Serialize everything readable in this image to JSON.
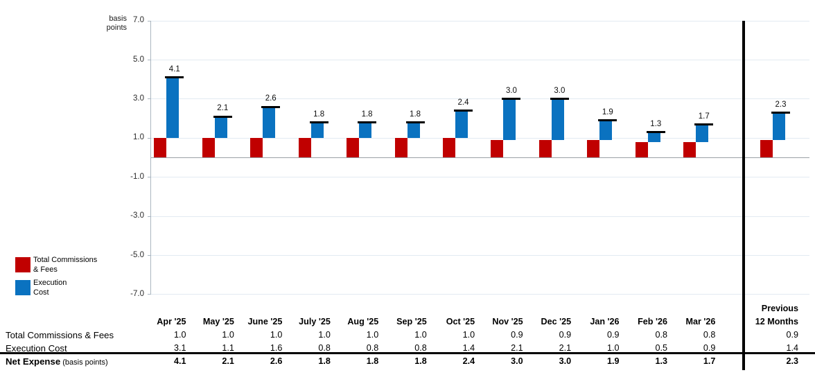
{
  "axis_title": {
    "line1": "basis",
    "line2": "points"
  },
  "legend": {
    "items": [
      {
        "name": "total-commissions-fees",
        "line1": "Total Commissions",
        "line2": "& Fees",
        "color": "#c00000"
      },
      {
        "name": "execution-cost",
        "line1": "Execution",
        "line2": "Cost",
        "color": "#0a72c0"
      }
    ]
  },
  "colors": {
    "commissions_bar": "#c00000",
    "execution_bar": "#0a72c0",
    "total_cap": "#000000",
    "gridline": "#e2eaf2",
    "zero_line": "#9aa0a6",
    "separator": "#000000"
  },
  "chart_data": {
    "type": "bar",
    "subtype": "stacked-columns-with-total-cap",
    "title": "",
    "xlabel": "",
    "ylabel": "basis points",
    "ylim": [
      -7.0,
      7.0
    ],
    "yticks": [
      7.0,
      5.0,
      3.0,
      1.0,
      -1.0,
      -3.0,
      -5.0,
      -7.0
    ],
    "grid": true,
    "legend_position": "bottom-left",
    "categories": [
      "Apr '25",
      "May '25",
      "June '25",
      "July '25",
      "Aug '25",
      "Sep '25",
      "Oct '25",
      "Nov '25",
      "Dec '25",
      "Jan '26",
      "Feb '26",
      "Mar '26",
      "Previous 12 Months"
    ],
    "series": [
      {
        "name": "Total Commissions & Fees",
        "color": "#c00000",
        "values": [
          1.0,
          1.0,
          1.0,
          1.0,
          1.0,
          1.0,
          1.0,
          0.9,
          0.9,
          0.9,
          0.8,
          0.8,
          0.9
        ]
      },
      {
        "name": "Execution Cost",
        "color": "#0a72c0",
        "values": [
          3.1,
          1.1,
          1.6,
          0.8,
          0.8,
          0.8,
          1.4,
          2.1,
          2.1,
          1.0,
          0.5,
          0.9,
          1.4
        ]
      }
    ],
    "totals": [
      4.1,
      2.1,
      2.6,
      1.8,
      1.8,
      1.8,
      2.4,
      3.0,
      3.0,
      1.9,
      1.3,
      1.7,
      2.3
    ]
  },
  "table": {
    "columns": [
      "Apr '25",
      "May '25",
      "June '25",
      "July '25",
      "Aug '25",
      "Sep '25",
      "Oct '25",
      "Nov '25",
      "Dec '25",
      "Jan '26",
      "Feb '26",
      "Mar '26"
    ],
    "prev_header": {
      "line1": "Previous",
      "line2": "12 Months"
    },
    "rows": [
      {
        "label": "Total Commissions & Fees",
        "suffix": "",
        "bold": false,
        "values": [
          1.0,
          1.0,
          1.0,
          1.0,
          1.0,
          1.0,
          1.0,
          0.9,
          0.9,
          0.9,
          0.8,
          0.8,
          0.9
        ]
      },
      {
        "label": "Execution Cost",
        "suffix": "",
        "bold": false,
        "values": [
          3.1,
          1.1,
          1.6,
          0.8,
          0.8,
          0.8,
          1.4,
          2.1,
          2.1,
          1.0,
          0.5,
          0.9,
          1.4
        ]
      },
      {
        "label": "Net Expense",
        "suffix": " (basis points)",
        "bold": true,
        "values": [
          4.1,
          2.1,
          2.6,
          1.8,
          1.8,
          1.8,
          2.4,
          3.0,
          3.0,
          1.9,
          1.3,
          1.7,
          2.3
        ]
      }
    ]
  }
}
